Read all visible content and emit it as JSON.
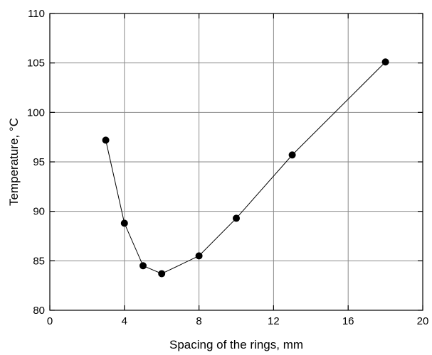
{
  "chart_data": {
    "type": "line",
    "title": "",
    "xlabel": "Spacing of the rings, mm",
    "ylabel": "Temperature, °C",
    "xlim": [
      0,
      20
    ],
    "ylim": [
      80,
      110
    ],
    "x_ticks": [
      0,
      4,
      8,
      12,
      16,
      20
    ],
    "y_ticks": [
      80,
      85,
      90,
      95,
      100,
      105,
      110
    ],
    "grid": true,
    "series": [
      {
        "x": [
          3,
          4,
          5,
          6,
          8,
          10,
          13,
          18
        ],
        "y": [
          97.2,
          88.8,
          84.5,
          83.7,
          85.5,
          89.3,
          95.7,
          105.1
        ]
      }
    ],
    "colors": {
      "series": "#000000",
      "grid": "#8a8a8a"
    }
  }
}
